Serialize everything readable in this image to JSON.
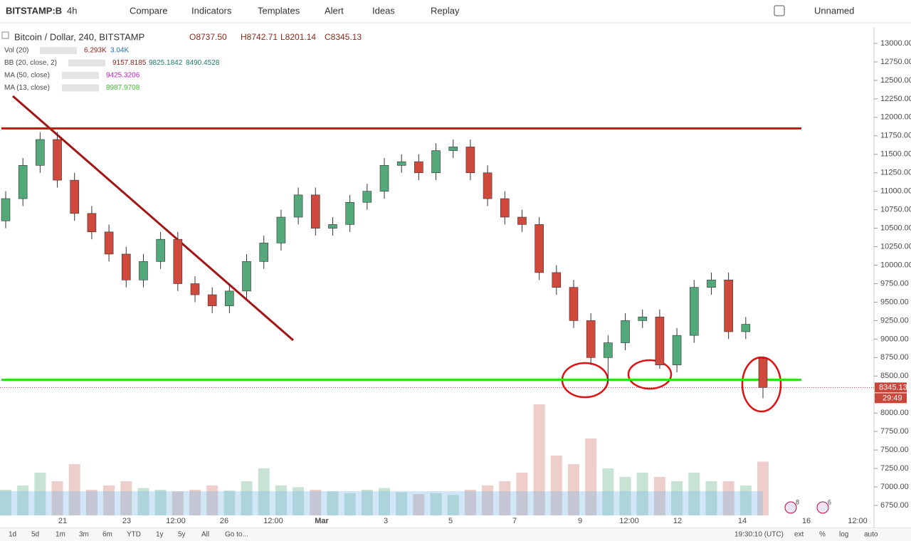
{
  "toolbar": {
    "symbol": "BITSTAMP:B",
    "interval": "4h",
    "items": [
      "Compare",
      "Indicators",
      "Templates",
      "Alert",
      "Ideas",
      "Replay"
    ],
    "layout": "Unnamed"
  },
  "legend": {
    "title": "Bitcoin / Dollar, 240, BITSTAMP",
    "ohlc": [
      "O8737.50",
      "H8742.71",
      "L8201.14",
      "C8345.13"
    ],
    "studies": [
      {
        "name": "Vol (20)",
        "values": [
          "6.293K",
          "3.04K"
        ],
        "colors": [
          "#8b1a1a",
          "#1a6fa8"
        ]
      },
      {
        "name": "BB (20, close, 2)",
        "values": [
          "9157.8185",
          "9825.1842",
          "8490.4528"
        ],
        "colors": [
          "#8b1a1a",
          "#1e7a6a",
          "#1e7a6a"
        ]
      },
      {
        "name": "MA (50, close)",
        "values": [
          "9425.3206"
        ],
        "colors": [
          "#c21dc2"
        ]
      },
      {
        "name": "MA (13, close)",
        "values": [
          "8987.9708"
        ],
        "colors": [
          "#3bbf2a"
        ]
      }
    ]
  },
  "chart_data": {
    "type": "candlestick",
    "open": [
      10600,
      10900,
      11350,
      11700,
      11150,
      10700,
      10450,
      10150,
      9800,
      10050,
      10350,
      9750,
      9600,
      9450,
      9650,
      10050,
      10300,
      10650,
      10950,
      10500,
      10550,
      10850,
      11000,
      11350,
      11400,
      11250,
      11550,
      11600,
      11250,
      10900,
      10650,
      10550,
      9900,
      9700,
      9250,
      8750,
      8950,
      9250,
      9300,
      8650,
      9050,
      9700,
      9800,
      9100,
      8737.5
    ],
    "high": [
      11000,
      11450,
      11800,
      11800,
      11250,
      10800,
      10550,
      10250,
      10150,
      10450,
      10450,
      9850,
      9700,
      9750,
      10150,
      10400,
      10750,
      11050,
      11050,
      10650,
      10950,
      11100,
      11450,
      11500,
      11500,
      11650,
      11700,
      11700,
      11350,
      11000,
      10750,
      10650,
      10000,
      9800,
      9350,
      9050,
      9350,
      9400,
      9400,
      9150,
      9800,
      9900,
      9900,
      9300,
      8742.71
    ],
    "low": [
      10500,
      10800,
      11250,
      11050,
      10600,
      10350,
      10050,
      9700,
      9700,
      9950,
      9650,
      9500,
      9350,
      9350,
      9550,
      9950,
      10200,
      10550,
      10400,
      10400,
      10450,
      10750,
      10900,
      11250,
      11150,
      11150,
      11450,
      11150,
      10800,
      10550,
      10450,
      9800,
      9600,
      9150,
      8650,
      8400,
      8850,
      9150,
      8600,
      8550,
      8950,
      9600,
      9000,
      9000,
      8201.14
    ],
    "close": [
      10900,
      11350,
      11700,
      11150,
      10700,
      10450,
      10150,
      9800,
      10050,
      10350,
      9750,
      9600,
      9450,
      9650,
      10050,
      10300,
      10650,
      10950,
      10500,
      10550,
      10850,
      11000,
      11350,
      11400,
      11250,
      11550,
      11600,
      11250,
      10900,
      10650,
      10550,
      9900,
      9700,
      9250,
      8750,
      8950,
      9250,
      9300,
      8650,
      9050,
      9700,
      9800,
      9100,
      9200,
      8345.13
    ],
    "volume": [
      3,
      3.5,
      5,
      4,
      6,
      3,
      3.5,
      4,
      3.2,
      3,
      2.8,
      3,
      3.5,
      2.9,
      4,
      5.5,
      3.5,
      3.3,
      3,
      2.8,
      2.6,
      3,
      3.2,
      2.7,
      2.5,
      2.6,
      2.4,
      3,
      3.5,
      4,
      5,
      13,
      7,
      6,
      9,
      5.5,
      4.5,
      5,
      4.5,
      4,
      5,
      4,
      4,
      3.5,
      6.293
    ],
    "up_color": "#53a97a",
    "down_color": "#cf4a3c",
    "ylim": [
      6625,
      13125
    ],
    "yticks": [
      {
        "value": 13000,
        "label": "13000.00"
      },
      {
        "value": 12750,
        "label": "12750.00"
      },
      {
        "value": 12500,
        "label": "12500.00"
      },
      {
        "value": 12250,
        "label": "12250.00"
      },
      {
        "value": 12000,
        "label": "12000.00"
      },
      {
        "value": 11750,
        "label": "11750.00"
      },
      {
        "value": 11500,
        "label": "11500.00"
      },
      {
        "value": 11250,
        "label": "11250.00"
      },
      {
        "value": 11000,
        "label": "11000.00"
      },
      {
        "value": 10750,
        "label": "10750.00"
      },
      {
        "value": 10500,
        "label": "10500.00"
      },
      {
        "value": 10250,
        "label": "10250.00"
      },
      {
        "value": 10000,
        "label": "10000.00"
      },
      {
        "value": 9750,
        "label": "9750.00"
      },
      {
        "value": 9500,
        "label": "9500.00"
      },
      {
        "value": 9250,
        "label": "9250.00"
      },
      {
        "value": 9000,
        "label": "9000.00"
      },
      {
        "value": 8750,
        "label": "8750.00"
      },
      {
        "value": 8500,
        "label": "8500.00"
      },
      {
        "value": 8000,
        "label": "8000.00"
      },
      {
        "value": 7750,
        "label": "7750.00"
      },
      {
        "value": 7500,
        "label": "7500.00"
      },
      {
        "value": 7250,
        "label": "7250.00"
      },
      {
        "value": 7000,
        "label": "7000.00"
      },
      {
        "value": 6750,
        "label": "6750.00"
      }
    ],
    "last_price": {
      "value": 8345.13,
      "label": "8345.13"
    },
    "countdown": "29:49",
    "resistance": 11850,
    "support": 8450,
    "x_labels": [
      "21",
      "23",
      "12:00",
      "26",
      "12:00",
      "Mar",
      "3",
      "5",
      "7",
      "9",
      "12:00",
      "12",
      "14",
      "16",
      "12:00"
    ],
    "flags": [
      "8",
      "6"
    ]
  },
  "bottom_bar": {
    "ranges": [
      "1d",
      "5d",
      "1m",
      "3m",
      "6m",
      "YTD",
      "1y",
      "5y",
      "All",
      "Go to..."
    ],
    "time": "19:30:10 (UTC)",
    "options": [
      "ext",
      "%",
      "log",
      "auto"
    ]
  }
}
